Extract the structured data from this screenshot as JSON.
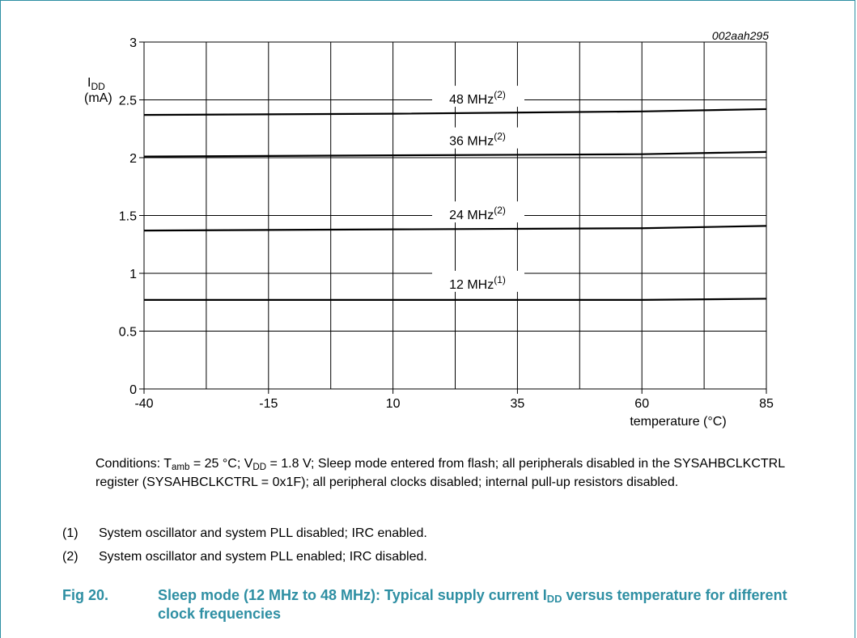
{
  "figure_id": "002aah295",
  "chart_data": {
    "type": "line",
    "title": "",
    "ylabel_main": "I",
    "ylabel_sub": "DD",
    "ylabel_unit": "(mA)",
    "xlabel": "temperature (°C)",
    "xlim": [
      -40,
      85
    ],
    "ylim": [
      0,
      3
    ],
    "xticks": [
      -40,
      -15,
      10,
      35,
      60,
      85
    ],
    "yticks": [
      0,
      0.5,
      1,
      1.5,
      2,
      2.5,
      3
    ],
    "ytick_labels": [
      "0",
      "0.5",
      "1",
      "1.5",
      "2",
      "2.5",
      "3"
    ],
    "x_gridlines": [
      -40,
      -27.5,
      -15,
      -2.5,
      10,
      22.5,
      35,
      47.5,
      60,
      72.5,
      85
    ],
    "grid": true,
    "series": [
      {
        "name": "48 MHz",
        "note": "(2)",
        "x": [
          -40,
          10,
          60,
          85
        ],
        "values": [
          2.37,
          2.38,
          2.4,
          2.42
        ]
      },
      {
        "name": "36 MHz",
        "note": "(2)",
        "x": [
          -40,
          10,
          60,
          85
        ],
        "values": [
          2.01,
          2.02,
          2.03,
          2.05
        ]
      },
      {
        "name": "24 MHz",
        "note": "(2)",
        "x": [
          -40,
          10,
          60,
          85
        ],
        "values": [
          1.37,
          1.38,
          1.39,
          1.41
        ]
      },
      {
        "name": "12 MHz",
        "note": "(1)",
        "x": [
          -40,
          10,
          60,
          85
        ],
        "values": [
          0.77,
          0.77,
          0.77,
          0.78
        ]
      }
    ]
  },
  "conditions": {
    "lead": "Conditions: T",
    "t_sub": "amb",
    "mid1": " = 25 °C; V",
    "v_sub": "DD",
    "rest": " = 1.8 V; Sleep mode entered from flash; all peripherals disabled in the SYSAHBCLKCTRL register (SYSAHBCLKCTRL = 0x1F); all peripheral clocks disabled; internal pull-up resistors disabled."
  },
  "notes": [
    {
      "num": "(1)",
      "text": "System oscillator and system PLL disabled; IRC enabled."
    },
    {
      "num": "(2)",
      "text": "System oscillator and system PLL enabled; IRC disabled."
    }
  ],
  "caption": {
    "number": "Fig 20.",
    "text_a": "Sleep mode (12 MHz to 48 MHz): Typical supply current I",
    "text_sub": "DD",
    "text_b": " versus temperature for different clock frequencies"
  }
}
